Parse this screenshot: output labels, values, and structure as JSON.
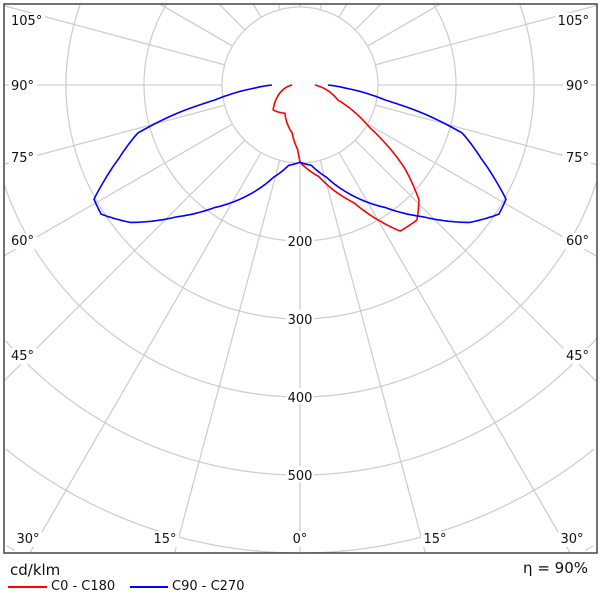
{
  "chart_data": {
    "type": "polar",
    "unit": "cd/klm",
    "efficiency": "η = 90%",
    "radial_max": 800,
    "radial_grid": [
      100,
      200,
      300,
      400,
      500,
      600,
      700,
      800
    ],
    "radial_ticks": [
      200,
      300,
      400,
      500
    ],
    "angle_step": 15,
    "angle_labels": [
      {
        "angle": 0,
        "text": "0°"
      },
      {
        "angle": 15,
        "text": "15°"
      },
      {
        "angle": 30,
        "text": "30°"
      },
      {
        "angle": 45,
        "text": "45°"
      },
      {
        "angle": 60,
        "text": "60°"
      },
      {
        "angle": 75,
        "text": "75°"
      },
      {
        "angle": 90,
        "text": "90°"
      },
      {
        "angle": 105,
        "text": "105°"
      }
    ],
    "grid": true,
    "legend_placement": "bottom-left",
    "series": [
      {
        "name": "C0 - C180",
        "color": "#ff0000",
        "right_C0": [
          [
            0,
            99
          ],
          [
            5,
            108
          ],
          [
            11.7,
            120
          ],
          [
            24.6,
            166
          ],
          [
            34.4,
            227
          ],
          [
            40.9,
            229
          ],
          [
            46,
            212
          ],
          [
            51.7,
            170
          ],
          [
            58.7,
            104
          ],
          [
            68.5,
            52
          ],
          [
            79.5,
            35
          ],
          [
            90,
            19
          ]
        ],
        "left_C180": [
          [
            0,
            99
          ],
          [
            2,
            83
          ],
          [
            9.5,
            62
          ],
          [
            28,
            41
          ],
          [
            47,
            47
          ],
          [
            62,
            33
          ],
          [
            79,
            19
          ],
          [
            90,
            10
          ]
        ]
      },
      {
        "name": "C90 - C270",
        "color": "#0000ff",
        "right_C90": [
          [
            0,
            99
          ],
          [
            8,
            104
          ],
          [
            16,
            123
          ],
          [
            26,
            159
          ],
          [
            35,
            192
          ],
          [
            43,
            231
          ],
          [
            51,
            280
          ],
          [
            57,
            304
          ],
          [
            61,
            302
          ],
          [
            64,
            279
          ],
          [
            68,
            250
          ],
          [
            73.5,
            217
          ],
          [
            77,
            162
          ],
          [
            80,
            111
          ],
          [
            86,
            59
          ],
          [
            90,
            36
          ]
        ],
        "left_C270": [
          [
            0,
            99
          ],
          [
            8,
            104
          ],
          [
            16,
            123
          ],
          [
            26,
            159
          ],
          [
            35,
            192
          ],
          [
            43,
            231
          ],
          [
            51,
            280
          ],
          [
            57,
            304
          ],
          [
            61,
            302
          ],
          [
            64,
            279
          ],
          [
            68,
            250
          ],
          [
            73.5,
            217
          ],
          [
            77,
            162
          ],
          [
            80,
            111
          ],
          [
            86,
            59
          ],
          [
            90,
            36
          ]
        ]
      }
    ]
  },
  "legend": {
    "unit": "cd/klm",
    "efficiency": "η = 90%",
    "items": [
      {
        "label": "C0 - C180",
        "color": "#ff0000"
      },
      {
        "label": "C90 - C270",
        "color": "#0000ff"
      }
    ]
  }
}
